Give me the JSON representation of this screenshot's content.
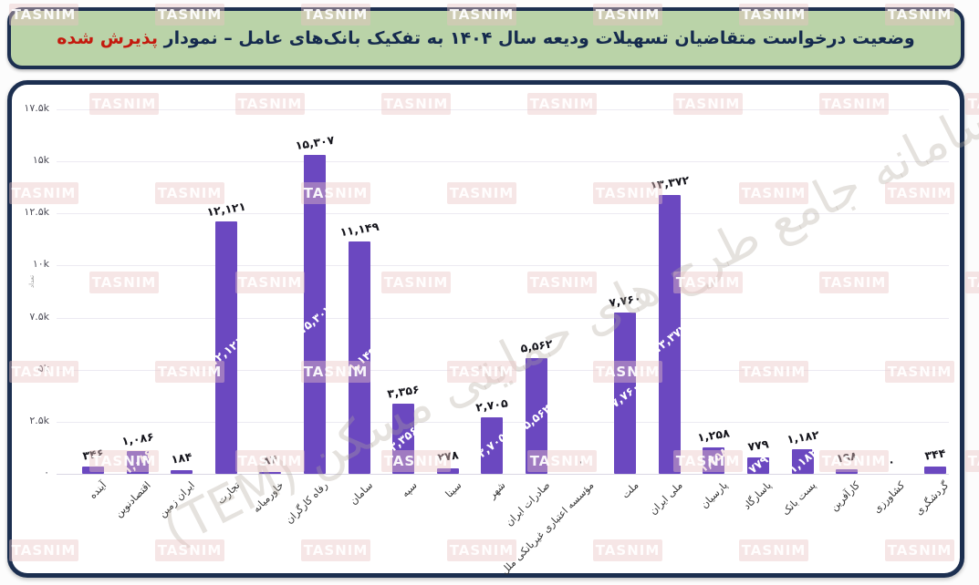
{
  "header": {
    "title_main": "وضعیت درخواست متقاضیان تسهیلات ودیعه سال ۱۴۰۴ به تفکیک بانک‌های عامل – نمودار ",
    "title_highlight": "پذیرش شده"
  },
  "watermarks": {
    "tasnim_label": "TASNIM",
    "diagonal_text": "سامانه جامع طرح های حمایتی مسکن (TEM)"
  },
  "colors": {
    "bar_purple": "#6b48c0",
    "banner_green": "#bad3a8",
    "border_navy": "#1c2f50",
    "highlight_red": "#c41a0e"
  },
  "chart_data": {
    "type": "bar",
    "title": "وضعیت درخواست متقاضیان تسهیلات ودیعه سال ۱۴۰۴ به تفکیک بانک‌های عامل – نمودار پذیرش شده",
    "xlabel": "",
    "ylabel": "تعداد",
    "ylim": [
      0,
      17500
    ],
    "grid": true,
    "legend_position": "none",
    "categories": [
      "آینده",
      "اقتصادنوین",
      "ایران زمین",
      "تجارت",
      "خاورمیانه",
      "رفاه کارگران",
      "سامان",
      "سپه",
      "سینا",
      "شهر",
      "صادرات ایران",
      "مؤسسه اعتباری غیربانکی ملل",
      "ملت",
      "ملی ایران",
      "پارسیان",
      "پاسارگاد",
      "پست بانک",
      "کارآفرین",
      "کشاورزی",
      "گردشگری"
    ],
    "values": [
      346,
      1086,
      184,
      12121,
      84,
      15307,
      11149,
      3356,
      278,
      2705,
      5562,
      0,
      7760,
      13372,
      1258,
      779,
      1182,
      198,
      0,
      344
    ],
    "value_labels": [
      "۳۴۶",
      "۱,۰۸۶",
      "۱۸۴",
      "۱۲,۱۲۱",
      "۸۴",
      "۱۵,۳۰۷",
      "۱۱,۱۴۹",
      "۳,۳۵۶",
      "۲۷۸",
      "۲,۷۰۵",
      "۵,۵۶۲",
      "۰",
      "۷,۷۶۰",
      "۱۳,۳۷۲",
      "۱,۲۵۸",
      "۷۷۹",
      "۱,۱۸۲",
      "۱۹۸",
      "۰",
      "۳۴۴"
    ],
    "y_ticks_bottom_to_top": [
      "۰",
      "۲.۵k",
      "۵k",
      "۷.۵k",
      "۱۰k",
      "۱۲.۵k",
      "۱۵k",
      "۱۷.۵k"
    ]
  }
}
